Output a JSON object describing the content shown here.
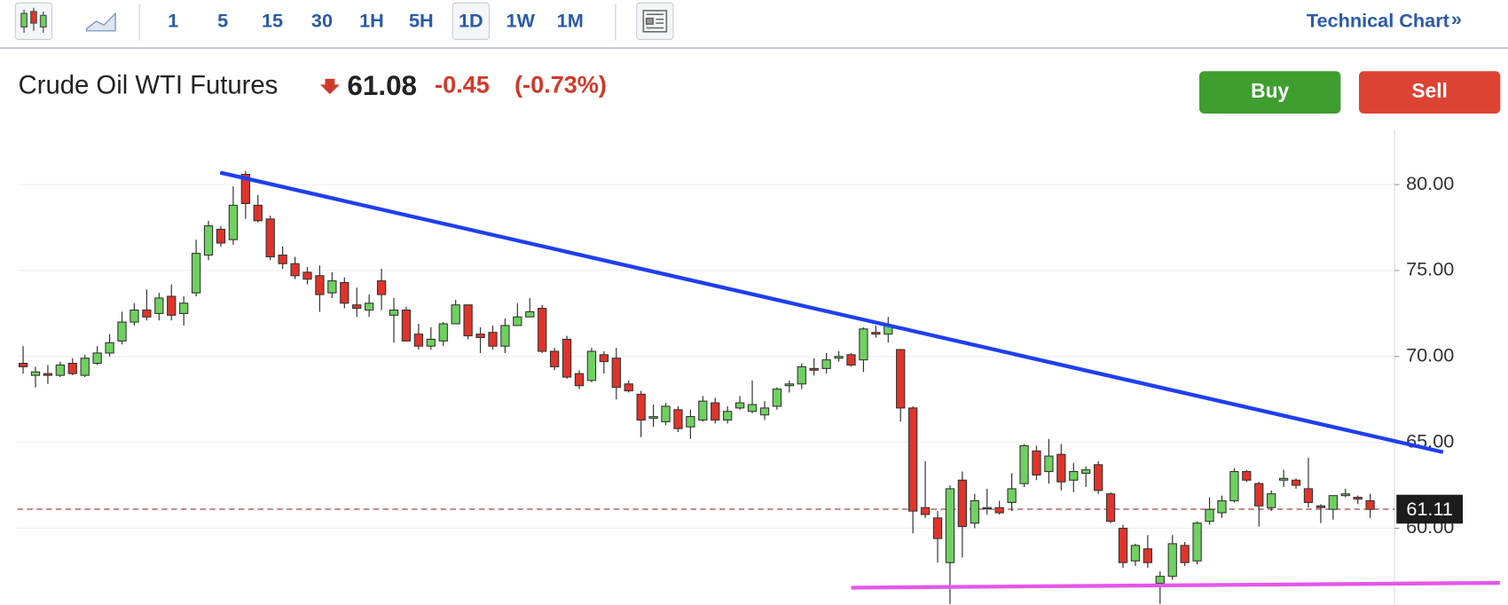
{
  "toolbar": {
    "intervals": [
      "1",
      "5",
      "15",
      "30",
      "1H",
      "5H",
      "1D",
      "1W",
      "1M"
    ],
    "selected_interval": "1D",
    "link": "Technical Chart",
    "link_icon": "»"
  },
  "header": {
    "name": "Crude Oil WTI Futures",
    "price": "61.08",
    "change": "-0.45",
    "change_percent": "(-0.73%)",
    "buy": "Buy",
    "sell": "Sell"
  },
  "chart_data": {
    "type": "candlestick",
    "up_color": "#6fd160",
    "down_color": "#e0342a",
    "grid": true,
    "xlim": [
      -0.47,
      110.97
    ],
    "ylim": [
      55.5,
      83.2
    ],
    "yticks": [
      {
        "value": 60,
        "label": "60.00"
      },
      {
        "value": 65,
        "label": "65.00"
      },
      {
        "value": 70,
        "label": "70.00"
      },
      {
        "value": 75,
        "label": "75.00"
      },
      {
        "value": 80,
        "label": "80.00"
      }
    ],
    "open": [
      69.6,
      68.9,
      69.0,
      68.9,
      69.6,
      68.9,
      69.6,
      70.2,
      70.9,
      72.0,
      72.7,
      72.5,
      73.5,
      72.5,
      73.7,
      75.9,
      77.4,
      76.8,
      80.6,
      78.8,
      78.0,
      75.9,
      75.4,
      74.9,
      74.7,
      73.7,
      74.3,
      73.0,
      72.7,
      74.4,
      72.4,
      72.7,
      71.3,
      70.6,
      70.9,
      71.9,
      73.0,
      71.3,
      71.4,
      70.6,
      71.8,
      72.3,
      72.8,
      70.3,
      71.0,
      69.0,
      68.6,
      70.1,
      69.9,
      68.4,
      67.8,
      66.4,
      66.2,
      66.9,
      65.9,
      66.3,
      67.3,
      66.3,
      67.0,
      66.8,
      66.6,
      67.1,
      68.3,
      68.4,
      69.3,
      69.3,
      69.9,
      70.1,
      69.8,
      71.4,
      71.3,
      70.4,
      67.0,
      61.2,
      60.6,
      58.0,
      62.8,
      60.3,
      61.2,
      61.2,
      61.5,
      62.6,
      64.5,
      63.3,
      64.3,
      62.8,
      63.2,
      63.7,
      62.0,
      60.0,
      58.1,
      58.8,
      56.8,
      57.2,
      59.0,
      58.1,
      60.4,
      60.9,
      61.6,
      63.3,
      62.6,
      61.2,
      62.8,
      62.8,
      62.3,
      61.3,
      61.1,
      61.9,
      61.8,
      61.6
    ],
    "high": [
      70.6,
      69.4,
      69.5,
      69.7,
      69.9,
      70.1,
      70.6,
      71.3,
      72.6,
      73.1,
      73.9,
      73.7,
      74.2,
      73.5,
      76.8,
      77.9,
      77.6,
      79.9,
      80.8,
      79.4,
      78.2,
      76.4,
      75.8,
      75.2,
      75.3,
      74.9,
      74.6,
      74.0,
      73.6,
      75.1,
      73.4,
      72.9,
      71.9,
      71.7,
      72.0,
      73.3,
      73.0,
      71.7,
      71.8,
      72.2,
      73.1,
      73.4,
      73.0,
      70.5,
      71.2,
      69.2,
      70.5,
      70.3,
      70.5,
      68.6,
      68.0,
      67.2,
      67.3,
      67.1,
      66.9,
      67.7,
      67.6,
      67.1,
      67.7,
      68.6,
      67.4,
      68.2,
      68.6,
      69.6,
      69.9,
      70.2,
      70.3,
      70.2,
      71.7,
      71.8,
      72.3,
      70.4,
      67.1,
      63.9,
      61.0,
      62.5,
      63.3,
      62.0,
      62.3,
      61.6,
      63.2,
      64.9,
      64.8,
      65.2,
      64.9,
      63.8,
      63.6,
      63.9,
      62.1,
      60.2,
      59.1,
      59.6,
      57.5,
      59.6,
      59.2,
      60.4,
      61.8,
      61.9,
      63.5,
      63.4,
      62.7,
      62.2,
      63.4,
      62.9,
      64.1,
      61.4,
      61.9,
      62.3,
      61.9,
      62.0
    ],
    "low": [
      69.0,
      68.2,
      68.4,
      68.8,
      68.9,
      68.8,
      69.5,
      70.0,
      70.7,
      71.8,
      72.1,
      72.1,
      72.1,
      71.8,
      73.5,
      75.6,
      76.4,
      76.5,
      78.0,
      77.8,
      75.6,
      75.1,
      74.5,
      74.2,
      72.6,
      73.4,
      72.8,
      72.3,
      72.3,
      72.7,
      70.8,
      70.9,
      70.4,
      70.4,
      70.6,
      71.9,
      71.0,
      70.2,
      70.4,
      70.2,
      71.8,
      72.3,
      70.2,
      69.2,
      68.7,
      68.1,
      68.5,
      69.0,
      67.5,
      67.9,
      65.3,
      65.9,
      66.0,
      65.6,
      65.2,
      66.2,
      66.1,
      66.1,
      66.9,
      66.7,
      66.3,
      66.9,
      67.9,
      68.1,
      68.9,
      69.0,
      69.7,
      69.4,
      69.1,
      71.1,
      70.8,
      66.2,
      59.7,
      60.6,
      58.0,
      55.6,
      58.3,
      60.0,
      60.8,
      60.8,
      61.0,
      62.4,
      62.8,
      62.6,
      62.2,
      62.1,
      62.4,
      62.0,
      60.3,
      57.7,
      57.8,
      57.7,
      55.6,
      57.0,
      57.8,
      57.9,
      60.2,
      60.6,
      61.5,
      62.7,
      60.1,
      61.0,
      62.4,
      62.3,
      61.2,
      60.3,
      60.5,
      61.8,
      61.4,
      60.6
    ],
    "close": [
      69.4,
      69.1,
      68.9,
      69.5,
      69.0,
      69.9,
      70.2,
      70.8,
      72.0,
      72.7,
      72.3,
      73.4,
      72.4,
      73.1,
      76.0,
      77.6,
      76.6,
      78.8,
      78.9,
      77.9,
      75.8,
      75.4,
      74.7,
      74.5,
      73.6,
      74.4,
      73.1,
      72.8,
      73.1,
      73.6,
      72.7,
      70.9,
      70.6,
      71.0,
      71.9,
      73.0,
      71.2,
      71.1,
      70.6,
      71.8,
      72.3,
      72.6,
      70.3,
      69.4,
      68.8,
      68.3,
      70.3,
      69.7,
      68.2,
      68.0,
      66.3,
      66.5,
      67.1,
      65.8,
      66.5,
      67.4,
      66.3,
      66.8,
      67.3,
      67.2,
      67.0,
      68.1,
      68.4,
      69.4,
      69.2,
      69.8,
      70.0,
      69.5,
      71.6,
      71.3,
      71.8,
      67.0,
      61.0,
      60.8,
      59.4,
      62.3,
      60.1,
      61.6,
      61.2,
      60.9,
      62.3,
      64.8,
      63.1,
      64.2,
      62.7,
      63.3,
      63.4,
      62.2,
      60.4,
      58.0,
      59.0,
      58.0,
      57.2,
      59.1,
      58.0,
      60.3,
      61.1,
      61.6,
      63.3,
      62.8,
      61.3,
      62.0,
      62.9,
      62.5,
      61.5,
      61.2,
      61.9,
      62.0,
      61.7,
      61.1
    ],
    "price_line": {
      "value": 61.11,
      "label": "61.11",
      "color": "#8b1a1a"
    },
    "trend_lines": [
      {
        "color": "#1f3ff0",
        "x": [
          15.95,
          114.9
        ],
        "y": [
          80.7,
          64.43
        ]
      },
      {
        "color": "#e457e9",
        "x": [
          67.0,
          119.5
        ],
        "y": [
          56.54,
          56.82
        ]
      }
    ]
  }
}
